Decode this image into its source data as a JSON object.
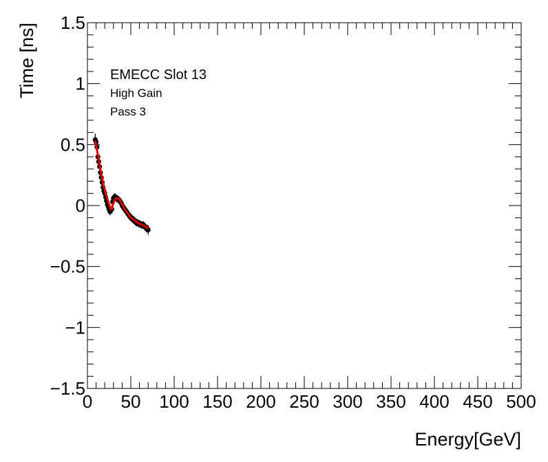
{
  "chart_data": {
    "type": "scatter",
    "xlabel": "Energy[GeV]",
    "ylabel": "Time [ns]",
    "xlim": [
      0,
      500
    ],
    "ylim": [
      -1.5,
      1.5
    ],
    "x_ticks": [
      0,
      50,
      100,
      150,
      200,
      250,
      300,
      350,
      400,
      450,
      500
    ],
    "x_tick_labels": [
      "0",
      "50",
      "100",
      "150",
      "200",
      "250",
      "300",
      "350",
      "400",
      "450",
      "500"
    ],
    "y_ticks": [
      -1.5,
      -1,
      -0.5,
      0,
      0.5,
      1,
      1.5
    ],
    "y_tick_labels": [
      "−1.5",
      "−1",
      "−0.5",
      "0",
      "0.5",
      "1",
      "1.5"
    ],
    "grid": false,
    "annotations": [
      "EMECC Slot 13",
      "High Gain",
      "Pass 3"
    ],
    "marker_color": "#000000",
    "fit_color": "#dd0000",
    "series": [
      {
        "x": [
          9,
          10,
          11,
          12,
          13,
          14,
          15,
          16,
          17,
          18,
          19,
          20,
          21,
          22,
          23,
          24,
          25,
          26,
          27,
          28,
          29,
          30,
          31,
          32,
          33,
          34,
          35,
          36,
          37,
          38,
          39,
          40,
          41,
          42,
          43,
          44,
          45,
          46,
          47,
          48,
          49,
          50,
          51,
          52,
          53,
          54,
          55,
          56,
          57,
          58,
          59,
          60,
          61,
          62,
          63,
          64,
          65,
          66,
          67,
          68,
          69,
          70
        ],
        "y": [
          0.54,
          0.52,
          0.48,
          0.4,
          0.36,
          0.32,
          0.27,
          0.23,
          0.19,
          0.15,
          0.12,
          0.1,
          0.07,
          0.04,
          0.01,
          -0.01,
          -0.03,
          -0.05,
          -0.04,
          -0.03,
          0.03,
          0.06,
          0.07,
          0.07,
          0.06,
          0.06,
          0.05,
          0.05,
          0.04,
          0.03,
          0.02,
          0.0,
          -0.01,
          -0.02,
          -0.03,
          -0.04,
          -0.05,
          -0.06,
          -0.07,
          -0.08,
          -0.09,
          -0.1,
          -0.1,
          -0.11,
          -0.12,
          -0.12,
          -0.13,
          -0.14,
          -0.14,
          -0.14,
          -0.15,
          -0.15,
          -0.15,
          -0.16,
          -0.16,
          -0.16,
          -0.16,
          -0.17,
          -0.18,
          -0.19,
          -0.19,
          -0.2
        ],
        "yerr": [
          0.05,
          0.04,
          0.04,
          0.04,
          0.03,
          0.03,
          0.03,
          0.03,
          0.03,
          0.03,
          0.03,
          0.03,
          0.03,
          0.03,
          0.03,
          0.03,
          0.03,
          0.03,
          0.03,
          0.03,
          0.03,
          0.03,
          0.03,
          0.03,
          0.03,
          0.03,
          0.03,
          0.03,
          0.03,
          0.03,
          0.03,
          0.03,
          0.03,
          0.03,
          0.03,
          0.03,
          0.03,
          0.03,
          0.03,
          0.03,
          0.03,
          0.03,
          0.03,
          0.03,
          0.03,
          0.03,
          0.03,
          0.03,
          0.03,
          0.03,
          0.03,
          0.03,
          0.03,
          0.03,
          0.03,
          0.03,
          0.03,
          0.03,
          0.03,
          0.03,
          0.03,
          0.04
        ]
      }
    ],
    "fit": {
      "x": [
        9,
        12,
        15,
        18,
        21,
        24,
        27,
        28,
        29,
        31,
        33,
        35,
        37,
        40,
        44,
        48,
        52,
        56,
        60,
        64,
        67,
        70
      ],
      "y": [
        0.53,
        0.42,
        0.3,
        0.19,
        0.1,
        0.03,
        -0.03,
        -0.03,
        0.0,
        0.04,
        0.06,
        0.06,
        0.05,
        0.01,
        -0.04,
        -0.08,
        -0.11,
        -0.13,
        -0.15,
        -0.16,
        -0.17,
        -0.19
      ]
    }
  }
}
